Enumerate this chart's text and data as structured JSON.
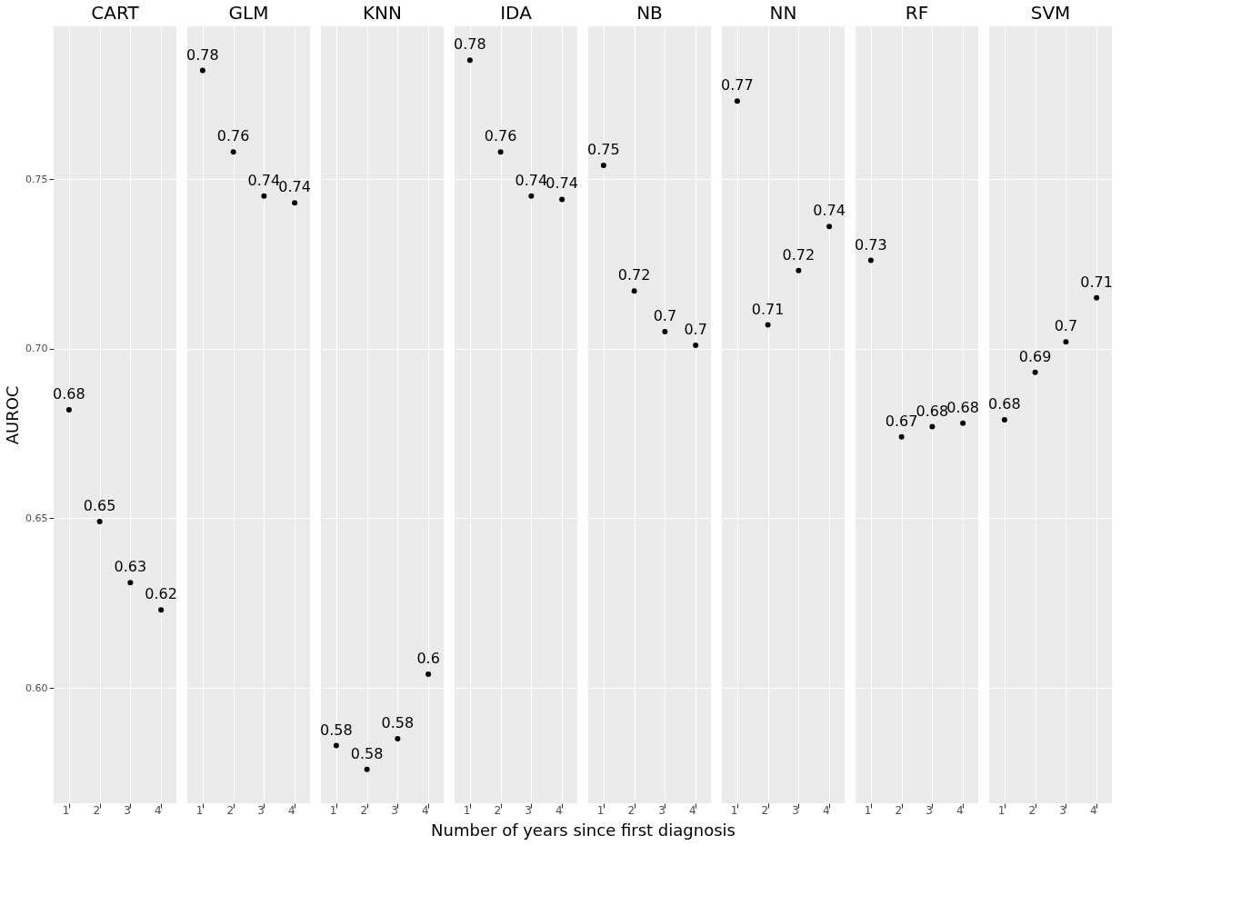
{
  "chart_data": [
    {
      "type": "scatter",
      "title": "CART",
      "ylabel": "AUROC",
      "categories": [
        "1",
        "2",
        "3",
        "4"
      ],
      "values": [
        0.682,
        0.649,
        0.631,
        0.623
      ],
      "value_labels": [
        "0.68",
        "0.65",
        "0.63",
        "0.62"
      ],
      "color": "#000000",
      "marker": "circle",
      "ylim": [
        0.566,
        0.795
      ],
      "yticks": [
        {
          "value": 0.6,
          "label": "0.60"
        },
        0.65,
        {
          "value": 0.7,
          "label": "0.70"
        },
        0.75
      ],
      "grid": true
    },
    {
      "type": "scatter",
      "title": "GLM",
      "categories": [
        "1",
        "2",
        "3",
        "4"
      ],
      "values": [
        0.782,
        0.758,
        0.745,
        0.743
      ],
      "value_labels": [
        "0.78",
        "0.76",
        "0.74",
        "0.74"
      ],
      "color": "#000000",
      "marker": "circle",
      "ylim": [
        0.566,
        0.795
      ],
      "yticks": [
        0.6,
        0.65,
        0.7,
        0.75
      ],
      "grid": true,
      "tick_labels": "x"
    },
    {
      "type": "scatter",
      "title": "KNN",
      "categories": [
        "1",
        "2",
        "3",
        "4"
      ],
      "values": [
        0.583,
        0.576,
        0.585,
        0.604
      ],
      "value_labels": [
        "0.58",
        "0.58",
        "0.58",
        "0.6"
      ],
      "color": "#000000",
      "marker": "circle",
      "ylim": [
        0.566,
        0.795
      ],
      "yticks": [
        0.6,
        0.65,
        0.7,
        0.75
      ],
      "grid": true,
      "tick_labels": "x"
    },
    {
      "type": "scatter",
      "title": "IDA",
      "xlabel": "Number of years since first diagnosis",
      "categories": [
        "1",
        "2",
        "3",
        "4"
      ],
      "values": [
        0.785,
        0.758,
        0.745,
        0.744
      ],
      "value_labels": [
        "0.78",
        "0.76",
        "0.74",
        "0.74"
      ],
      "color": "#000000",
      "marker": "circle",
      "ylim": [
        0.566,
        0.795
      ],
      "yticks": [
        0.6,
        0.65,
        0.7,
        0.75
      ],
      "grid": true,
      "tick_labels": "x"
    },
    {
      "type": "scatter",
      "title": "NB",
      "categories": [
        "1",
        "2",
        "3",
        "4"
      ],
      "values": [
        0.754,
        0.717,
        0.705,
        0.701
      ],
      "value_labels": [
        "0.75",
        "0.72",
        "0.7",
        "0.7"
      ],
      "color": "#000000",
      "marker": "circle",
      "ylim": [
        0.566,
        0.795
      ],
      "yticks": [
        0.6,
        0.65,
        0.7,
        0.75
      ],
      "grid": true,
      "tick_labels": "x"
    },
    {
      "type": "scatter",
      "title": "NN",
      "categories": [
        "1",
        "2",
        "3",
        "4"
      ],
      "values": [
        0.773,
        0.707,
        0.723,
        0.736
      ],
      "value_labels": [
        "0.77",
        "0.71",
        "0.72",
        "0.74"
      ],
      "color": "#000000",
      "marker": "circle",
      "ylim": [
        0.566,
        0.795
      ],
      "yticks": [
        0.6,
        0.65,
        0.7,
        0.75
      ],
      "grid": true,
      "tick_labels": "x"
    },
    {
      "type": "scatter",
      "title": "RF",
      "categories": [
        "1",
        "2",
        "3",
        "4"
      ],
      "values": [
        0.726,
        0.674,
        0.677,
        0.678
      ],
      "value_labels": [
        "0.73",
        "0.67",
        "0.68",
        "0.68"
      ],
      "color": "#000000",
      "marker": "circle",
      "ylim": [
        0.566,
        0.795
      ],
      "yticks": [
        0.6,
        0.65,
        0.7,
        0.75
      ],
      "grid": true,
      "tick_labels": "x"
    },
    {
      "type": "scatter",
      "title": "SVM",
      "categories": [
        "1",
        "2",
        "3",
        "4"
      ],
      "values": [
        0.679,
        0.693,
        0.702,
        0.715
      ],
      "value_labels": [
        "0.68",
        "0.69",
        "0.7",
        "0.71"
      ],
      "color": "#000000",
      "marker": "circle",
      "ylim": [
        0.566,
        0.795
      ],
      "yticks": [
        0.6,
        0.65,
        0.7,
        0.75
      ],
      "grid": true,
      "tick_labels": "x"
    }
  ]
}
